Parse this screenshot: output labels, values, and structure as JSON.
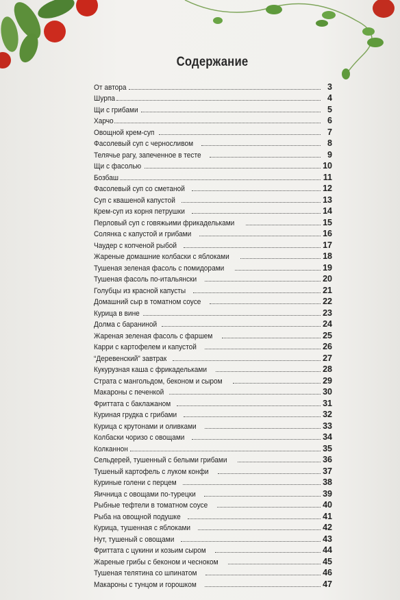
{
  "header": {
    "title": "Содержание"
  },
  "entries": [
    {
      "title": "От автора",
      "page": 3
    },
    {
      "title": "Шурпа",
      "page": 4
    },
    {
      "title": "Щи с грибами",
      "page": 5
    },
    {
      "title": "Харчо",
      "page": 6
    },
    {
      "title": "Овощной крем-суп",
      "page": 7
    },
    {
      "title": "Фасолевый суп с черносливом",
      "page": 8
    },
    {
      "title": "Телячье рагу, запеченное в тесте",
      "page": 9
    },
    {
      "title": "Щи с фасолью",
      "page": 10
    },
    {
      "title": "Бозбаш",
      "page": 11
    },
    {
      "title": "Фасолевый суп со сметаной",
      "page": 12
    },
    {
      "title": "Суп с квашеной капустой",
      "page": 13
    },
    {
      "title": "Крем-суп из корня петрушки",
      "page": 14
    },
    {
      "title": "Перловый суп с говяжьими фрикадельками",
      "page": 15
    },
    {
      "title": "Солянка с капустой и грибами",
      "page": 16
    },
    {
      "title": "Чаудер с копченой рыбой",
      "page": 17
    },
    {
      "title": "Жареные домашние колбаски с яблоками",
      "page": 18
    },
    {
      "title": "Тушеная зеленая фасоль с помидорами",
      "page": 19
    },
    {
      "title": "Тушеная фасоль по-итальянски",
      "page": 20
    },
    {
      "title": "Голубцы из красной капусты",
      "page": 21
    },
    {
      "title": "Домашний сыр в томатном соусе",
      "page": 22
    },
    {
      "title": "Курица в вине",
      "page": 23
    },
    {
      "title": "Долма с бараниной",
      "page": 24
    },
    {
      "title": "Жареная зеленая фасоль с фаршем",
      "page": 25
    },
    {
      "title": "Карри с картофелем и капустой",
      "page": 26
    },
    {
      "title": "“Деревенский” завтрак",
      "page": 27
    },
    {
      "title": "Кукурузная каша с фрикадельками",
      "page": 28
    },
    {
      "title": "Страта с мангольдом, беконом и сыром",
      "page": 29
    },
    {
      "title": "Макароны с печенкой",
      "page": 30
    },
    {
      "title": "Фриттата с баклажаном",
      "page": 31
    },
    {
      "title": "Куриная грудка с грибами",
      "page": 32
    },
    {
      "title": "Курица с крутонами и оливками",
      "page": 33
    },
    {
      "title": "Колбаски чоризо с овощами",
      "page": 34
    },
    {
      "title": "Колканнон",
      "page": 35
    },
    {
      "title": "Сельдерей, тушенный с белыми грибами",
      "page": 36
    },
    {
      "title": "Тушеный картофель с луком конфи",
      "page": 37
    },
    {
      "title": "Куриные голени с перцем",
      "page": 38
    },
    {
      "title": "Яичница с овощами по-турецки",
      "page": 39
    },
    {
      "title": "Рыбные тефтели в томатном соусе",
      "page": 40
    },
    {
      "title": "Рыба на овощной подушке",
      "page": 41
    },
    {
      "title": "Курица, тушенная с яблоками",
      "page": 42
    },
    {
      "title": "Нут, тушеный с овощами",
      "page": 43
    },
    {
      "title": "Фриттата с цукини и козьим сыром",
      "page": 44
    },
    {
      "title": "Жареные грибы с беконом и чесноком",
      "page": 45
    },
    {
      "title": "Тушеная телятина со шпинатом",
      "page": 46
    },
    {
      "title": "Макароны с тунцом и горошком",
      "page": 47
    }
  ]
}
